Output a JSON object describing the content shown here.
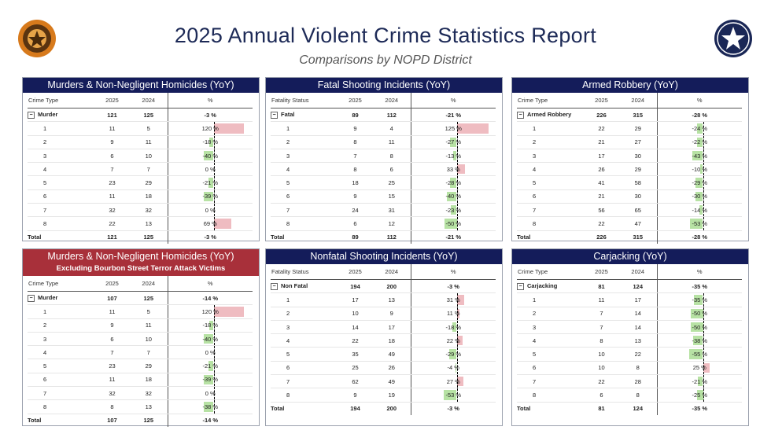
{
  "header": {
    "title": "2025 Annual Violent Crime Statistics Report",
    "subtitle": "Comparisons by NOPD District",
    "logo_left_text": "NEW ORLEANS POLICE",
    "logo_right_text": "NEW ORLEANS POLICE"
  },
  "colors": {
    "header_bg": "#141c5a",
    "header_alt_bg": "#a8303a",
    "negative_bar": "#b7e2a4",
    "positive_bar": "#efbcc1"
  },
  "chart_data": [
    {
      "type": "table",
      "title": "Murders & Non-Negligent Homicides (YoY)",
      "columns": [
        "Crime Type",
        "2025",
        "2024",
        "%"
      ],
      "group": {
        "label": "Murder",
        "y2025": "121",
        "y2024": "125",
        "pct": "-3 %"
      },
      "rows": [
        {
          "label": "1",
          "y2025": "11",
          "y2024": "5",
          "pct": "120 %",
          "value": 120
        },
        {
          "label": "2",
          "y2025": "9",
          "y2024": "11",
          "pct": "-18 %",
          "value": -18
        },
        {
          "label": "3",
          "y2025": "6",
          "y2024": "10",
          "pct": "-40 %",
          "value": -40
        },
        {
          "label": "4",
          "y2025": "7",
          "y2024": "7",
          "pct": "0 %",
          "value": 0
        },
        {
          "label": "5",
          "y2025": "23",
          "y2024": "29",
          "pct": "-21 %",
          "value": -21
        },
        {
          "label": "6",
          "y2025": "11",
          "y2024": "18",
          "pct": "-39 %",
          "value": -39
        },
        {
          "label": "7",
          "y2025": "32",
          "y2024": "32",
          "pct": "0 %",
          "value": 0
        },
        {
          "label": "8",
          "y2025": "22",
          "y2024": "13",
          "pct": "69 %",
          "value": 69
        }
      ],
      "total": {
        "label": "Total",
        "y2025": "121",
        "y2024": "125",
        "pct": "-3 %"
      }
    },
    {
      "type": "table",
      "title": "Fatal Shooting Incidents (YoY)",
      "columns": [
        "Fatality Status",
        "2025",
        "2024",
        "%"
      ],
      "group": {
        "label": "Fatal",
        "y2025": "89",
        "y2024": "112",
        "pct": "-21 %"
      },
      "rows": [
        {
          "label": "1",
          "y2025": "9",
          "y2024": "4",
          "pct": "125 %",
          "value": 125
        },
        {
          "label": "2",
          "y2025": "8",
          "y2024": "11",
          "pct": "-27 %",
          "value": -27
        },
        {
          "label": "3",
          "y2025": "7",
          "y2024": "8",
          "pct": "-13 %",
          "value": -13
        },
        {
          "label": "4",
          "y2025": "8",
          "y2024": "6",
          "pct": "33 %",
          "value": 33
        },
        {
          "label": "5",
          "y2025": "18",
          "y2024": "25",
          "pct": "-28 %",
          "value": -28
        },
        {
          "label": "6",
          "y2025": "9",
          "y2024": "15",
          "pct": "-40 %",
          "value": -40
        },
        {
          "label": "7",
          "y2025": "24",
          "y2024": "31",
          "pct": "-23 %",
          "value": -23
        },
        {
          "label": "8",
          "y2025": "6",
          "y2024": "12",
          "pct": "-50 %",
          "value": -50
        }
      ],
      "total": {
        "label": "Total",
        "y2025": "89",
        "y2024": "112",
        "pct": "-21 %"
      }
    },
    {
      "type": "table",
      "title": "Armed Robbery (YoY)",
      "columns": [
        "Crime Type",
        "2025",
        "2024",
        "%"
      ],
      "group": {
        "label": "Armed Robbery",
        "y2025": "226",
        "y2024": "315",
        "pct": "-28 %"
      },
      "rows": [
        {
          "label": "1",
          "y2025": "22",
          "y2024": "29",
          "pct": "-24 %",
          "value": -24
        },
        {
          "label": "2",
          "y2025": "21",
          "y2024": "27",
          "pct": "-22 %",
          "value": -22
        },
        {
          "label": "3",
          "y2025": "17",
          "y2024": "30",
          "pct": "-43 %",
          "value": -43
        },
        {
          "label": "4",
          "y2025": "26",
          "y2024": "29",
          "pct": "-10 %",
          "value": -10
        },
        {
          "label": "5",
          "y2025": "41",
          "y2024": "58",
          "pct": "-29 %",
          "value": -29
        },
        {
          "label": "6",
          "y2025": "21",
          "y2024": "30",
          "pct": "-30 %",
          "value": -30
        },
        {
          "label": "7",
          "y2025": "56",
          "y2024": "65",
          "pct": "-14 %",
          "value": -14
        },
        {
          "label": "8",
          "y2025": "22",
          "y2024": "47",
          "pct": "-53 %",
          "value": -53
        }
      ],
      "total": {
        "label": "Total",
        "y2025": "226",
        "y2024": "315",
        "pct": "-28 %"
      }
    },
    {
      "type": "table",
      "title": "Murders & Non-Negligent Homicides (YoY)",
      "subtitle": "Excluding Bourbon Street Terror Attack Victims",
      "columns": [
        "Crime Type",
        "2025",
        "2024",
        "%"
      ],
      "group": {
        "label": "Murder",
        "y2025": "107",
        "y2024": "125",
        "pct": "-14 %"
      },
      "rows": [
        {
          "label": "1",
          "y2025": "11",
          "y2024": "5",
          "pct": "120 %",
          "value": 120
        },
        {
          "label": "2",
          "y2025": "9",
          "y2024": "11",
          "pct": "-18 %",
          "value": -18
        },
        {
          "label": "3",
          "y2025": "6",
          "y2024": "10",
          "pct": "-40 %",
          "value": -40
        },
        {
          "label": "4",
          "y2025": "7",
          "y2024": "7",
          "pct": "0 %",
          "value": 0
        },
        {
          "label": "5",
          "y2025": "23",
          "y2024": "29",
          "pct": "-21 %",
          "value": -21
        },
        {
          "label": "6",
          "y2025": "11",
          "y2024": "18",
          "pct": "-39 %",
          "value": -39
        },
        {
          "label": "7",
          "y2025": "32",
          "y2024": "32",
          "pct": "0 %",
          "value": 0
        },
        {
          "label": "8",
          "y2025": "8",
          "y2024": "13",
          "pct": "-38 %",
          "value": -38
        }
      ],
      "total": {
        "label": "Total",
        "y2025": "107",
        "y2024": "125",
        "pct": "-14 %"
      }
    },
    {
      "type": "table",
      "title": "Nonfatal Shooting Incidents (YoY)",
      "columns": [
        "Fatality Status",
        "2025",
        "2024",
        "%"
      ],
      "group": {
        "label": "Non Fatal",
        "y2025": "194",
        "y2024": "200",
        "pct": "-3 %"
      },
      "rows": [
        {
          "label": "1",
          "y2025": "17",
          "y2024": "13",
          "pct": "31 %",
          "value": 31
        },
        {
          "label": "2",
          "y2025": "10",
          "y2024": "9",
          "pct": "11 %",
          "value": 11
        },
        {
          "label": "3",
          "y2025": "14",
          "y2024": "17",
          "pct": "-18 %",
          "value": -18
        },
        {
          "label": "4",
          "y2025": "22",
          "y2024": "18",
          "pct": "22 %",
          "value": 22
        },
        {
          "label": "5",
          "y2025": "35",
          "y2024": "49",
          "pct": "-29 %",
          "value": -29
        },
        {
          "label": "6",
          "y2025": "25",
          "y2024": "26",
          "pct": "-4 %",
          "value": -4
        },
        {
          "label": "7",
          "y2025": "62",
          "y2024": "49",
          "pct": "27 %",
          "value": 27
        },
        {
          "label": "8",
          "y2025": "9",
          "y2024": "19",
          "pct": "-53 %",
          "value": -53
        }
      ],
      "total": {
        "label": "Total",
        "y2025": "194",
        "y2024": "200",
        "pct": "-3 %"
      }
    },
    {
      "type": "table",
      "title": "Carjacking (YoY)",
      "columns": [
        "Crime Type",
        "2025",
        "2024",
        "%"
      ],
      "group": {
        "label": "Carjacking",
        "y2025": "81",
        "y2024": "124",
        "pct": "-35 %"
      },
      "rows": [
        {
          "label": "1",
          "y2025": "11",
          "y2024": "17",
          "pct": "-35 %",
          "value": -35
        },
        {
          "label": "2",
          "y2025": "7",
          "y2024": "14",
          "pct": "-50 %",
          "value": -50
        },
        {
          "label": "3",
          "y2025": "7",
          "y2024": "14",
          "pct": "-50 %",
          "value": -50
        },
        {
          "label": "4",
          "y2025": "8",
          "y2024": "13",
          "pct": "-38 %",
          "value": -38
        },
        {
          "label": "5",
          "y2025": "10",
          "y2024": "22",
          "pct": "-55 %",
          "value": -55
        },
        {
          "label": "6",
          "y2025": "10",
          "y2024": "8",
          "pct": "25 %",
          "value": 25
        },
        {
          "label": "7",
          "y2025": "22",
          "y2024": "28",
          "pct": "-21 %",
          "value": -21
        },
        {
          "label": "8",
          "y2025": "6",
          "y2024": "8",
          "pct": "-25 %",
          "value": -25
        }
      ],
      "total": {
        "label": "Total",
        "y2025": "81",
        "y2024": "124",
        "pct": "-35 %"
      }
    }
  ]
}
